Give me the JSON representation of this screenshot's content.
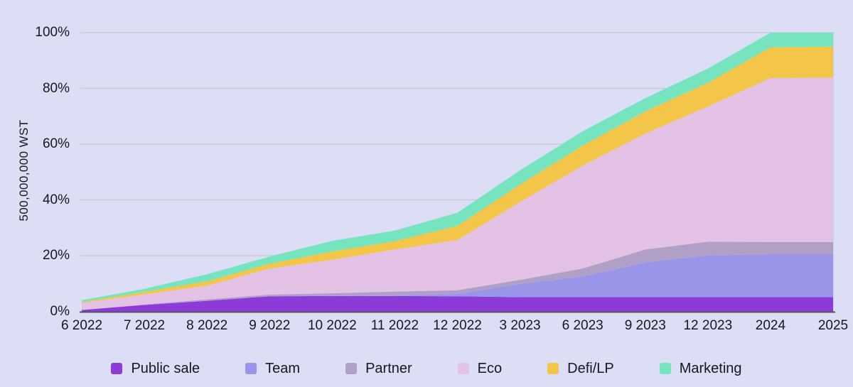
{
  "chart_data": {
    "type": "area",
    "stacked": true,
    "title": "",
    "xlabel": "",
    "ylabel": "500,000,000 WST",
    "ylim": [
      0,
      100
    ],
    "grid": "horizontal",
    "legend_position": "bottom",
    "y_ticks": [
      "0%",
      "20%",
      "40%",
      "60%",
      "80%",
      "100%"
    ],
    "y_tick_values": [
      0,
      20,
      40,
      60,
      80,
      100
    ],
    "categories": [
      "6 2022",
      "7 2022",
      "8 2022",
      "9 2022",
      "10 2022",
      "11 2022",
      "12 2022",
      "3 2023",
      "6 2023",
      "9 2023",
      "12 2023",
      "2024",
      "2025"
    ],
    "series": [
      {
        "name": "Public sale",
        "color": "#8c3bd9",
        "values": [
          0.5,
          2.3,
          3.8,
          5.4,
          5.5,
          5.5,
          5.4,
          5.1,
          5.1,
          5.1,
          5.1,
          5.1,
          5.1
        ]
      },
      {
        "name": "Team",
        "color": "#9996ea",
        "values": [
          0,
          0,
          0,
          0,
          0,
          0.2,
          0.9,
          4.8,
          7.4,
          12.5,
          15,
          15.4,
          15.4
        ]
      },
      {
        "name": "Partner",
        "color": "#b1a0c5",
        "values": [
          0,
          0.2,
          0.5,
          0.6,
          1,
          1.4,
          1.3,
          1.4,
          2.9,
          4.6,
          4.9,
          4.4,
          4.4
        ]
      },
      {
        "name": "Eco",
        "color": "#e3c2e5",
        "values": [
          2.5,
          3.6,
          4.9,
          9.4,
          12,
          15.1,
          18,
          27.9,
          36.9,
          41.6,
          48.5,
          58.8,
          59
        ]
      },
      {
        "name": "Defi/LP",
        "color": "#f3c64a",
        "values": [
          0.4,
          0.9,
          1.6,
          1.7,
          3,
          3,
          5.1,
          6.3,
          7.2,
          8,
          8.5,
          11,
          11.1
        ]
      },
      {
        "name": "Marketing",
        "color": "#77e4c0",
        "values": [
          0.6,
          1.1,
          2.5,
          2.6,
          3.8,
          3.8,
          4.7,
          5.1,
          5.1,
          4.7,
          5.1,
          5.3,
          5
        ]
      }
    ]
  },
  "colors": {
    "background": "#dbdef4",
    "gridline": "#c9ccdf",
    "axis_line": "#55555e",
    "text": "#17171f"
  }
}
